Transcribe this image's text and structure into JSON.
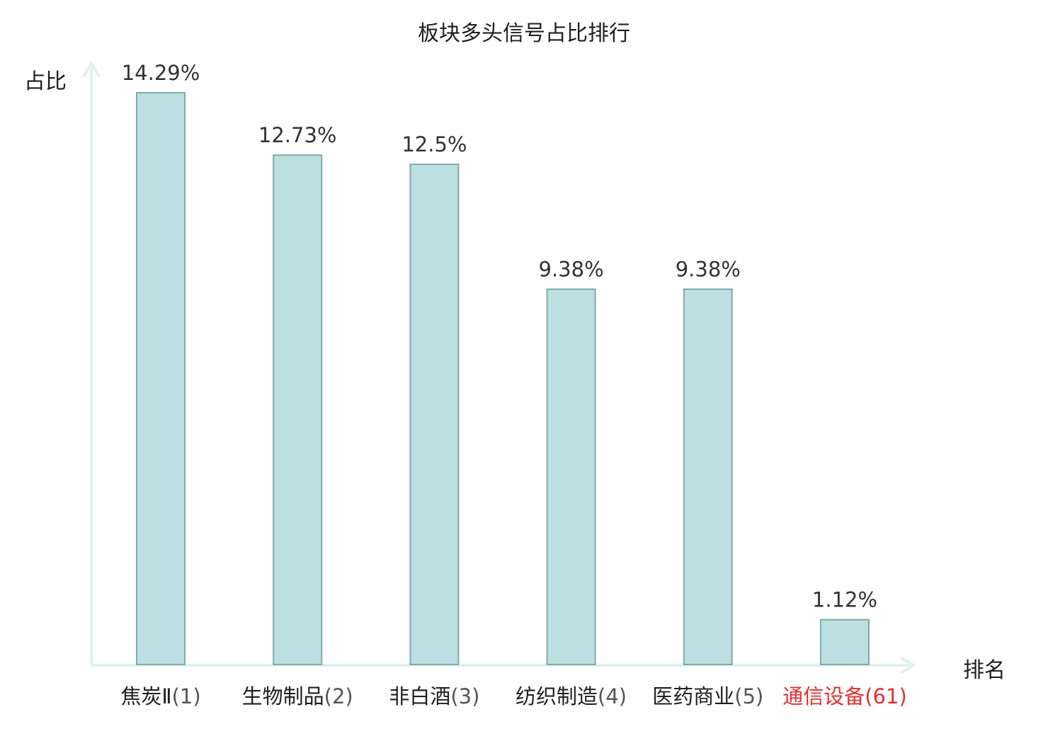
{
  "chart_data": {
    "type": "bar",
    "title": "板块多头信号占比排行",
    "xlabel": "排名",
    "ylabel": "占比",
    "categories": [
      "焦炭Ⅱ",
      "生物制品",
      "非白酒",
      "纺织制造",
      "医药商业",
      "通信设备"
    ],
    "ranks": [
      "(1)",
      "(2)",
      "(3)",
      "(4)",
      "(5)",
      "(61)"
    ],
    "values": [
      14.29,
      12.73,
      12.5,
      9.38,
      9.38,
      1.12
    ],
    "value_labels": [
      "14.29%",
      "12.73%",
      "12.5%",
      "9.38%",
      "9.38%",
      "1.12%"
    ],
    "highlight_index": 5,
    "ylim": [
      0,
      14.29
    ],
    "grid": false,
    "colors": {
      "bar_fill": "#bce0e2",
      "bar_stroke": "#85a9ab",
      "axis": "#dff1ee",
      "label_text": "#1f1f1f",
      "value_text": "#333333",
      "highlight": "#e03030"
    }
  }
}
